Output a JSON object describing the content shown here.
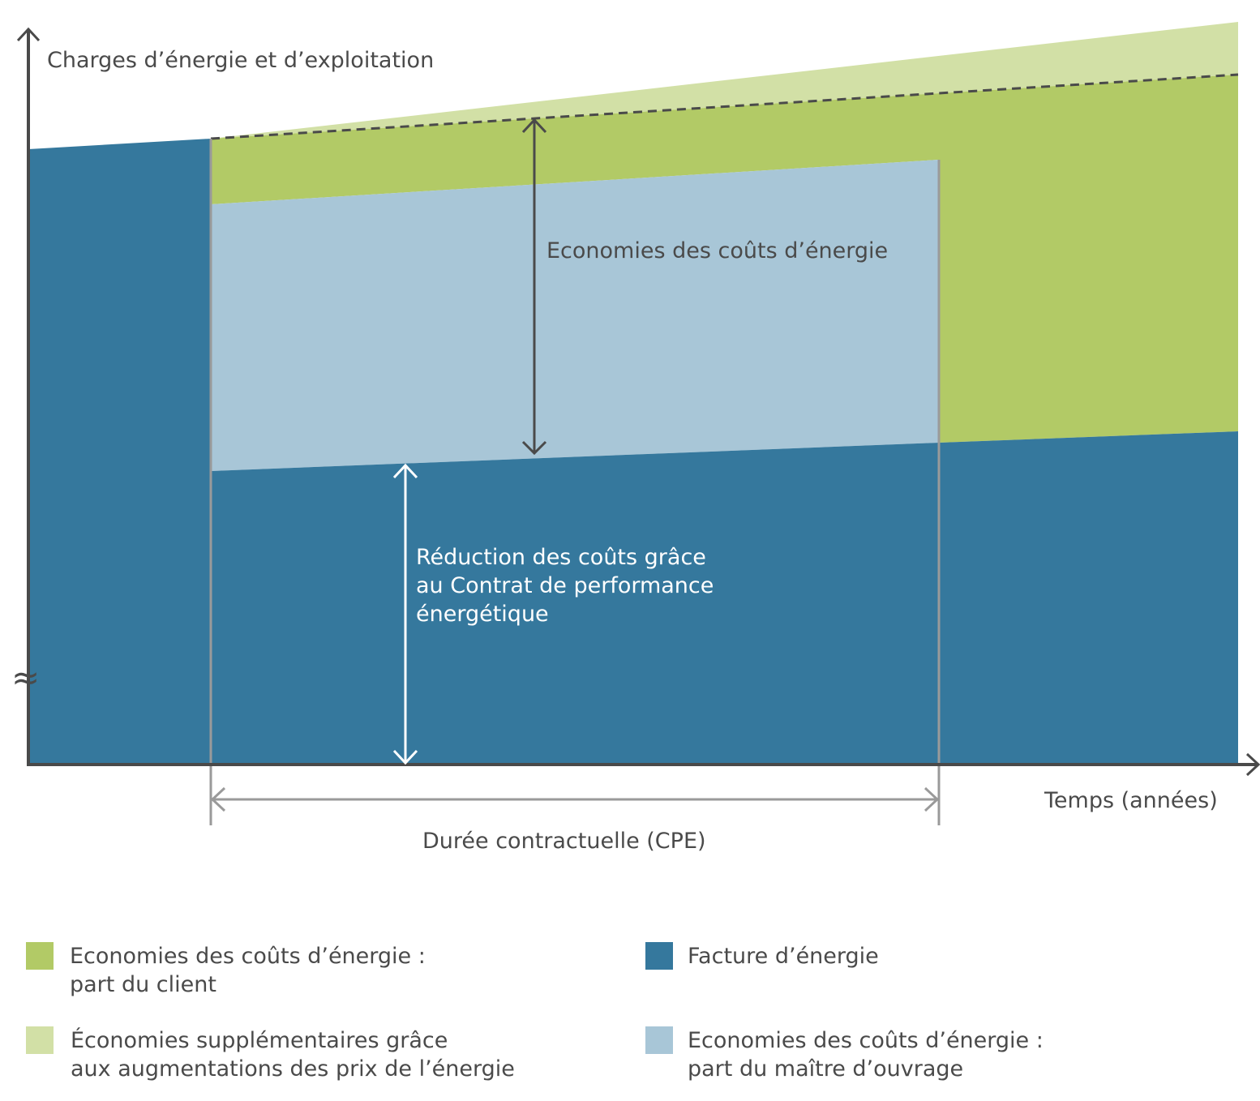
{
  "colors": {
    "bill": "#35789d",
    "client_savings": "#b2ca66",
    "extra_savings": "#d2e0a6",
    "owner_savings": "#a8c6d7",
    "axis": "#4a4a4a",
    "boundary": "#9a9a9a"
  },
  "labels": {
    "y_axis": "Charges d’énergie et d’exploitation",
    "x_axis": "Temps (années)",
    "duration": "Durée contractuelle (CPE)",
    "savings": "Economies des coûts d’énergie",
    "reduction_line1": "Réduction des coûts grâce",
    "reduction_line2": "au Contrat de performance",
    "reduction_line3": "énergétique",
    "axis_break": "≈"
  },
  "legend": [
    {
      "color_key": "client_savings",
      "line1": "Economies des coûts d’énergie :",
      "line2": "part du client"
    },
    {
      "color_key": "bill",
      "line1": "Facture d’énergie",
      "line2": ""
    },
    {
      "color_key": "extra_savings",
      "line1": "Économies supplémentaires grâce",
      "line2": "aux augmentations des prix de l’énergie"
    },
    {
      "color_key": "owner_savings",
      "line1": "Economies des coûts d’énergie :",
      "line2": "part du maître d’ouvrage"
    }
  ]
}
